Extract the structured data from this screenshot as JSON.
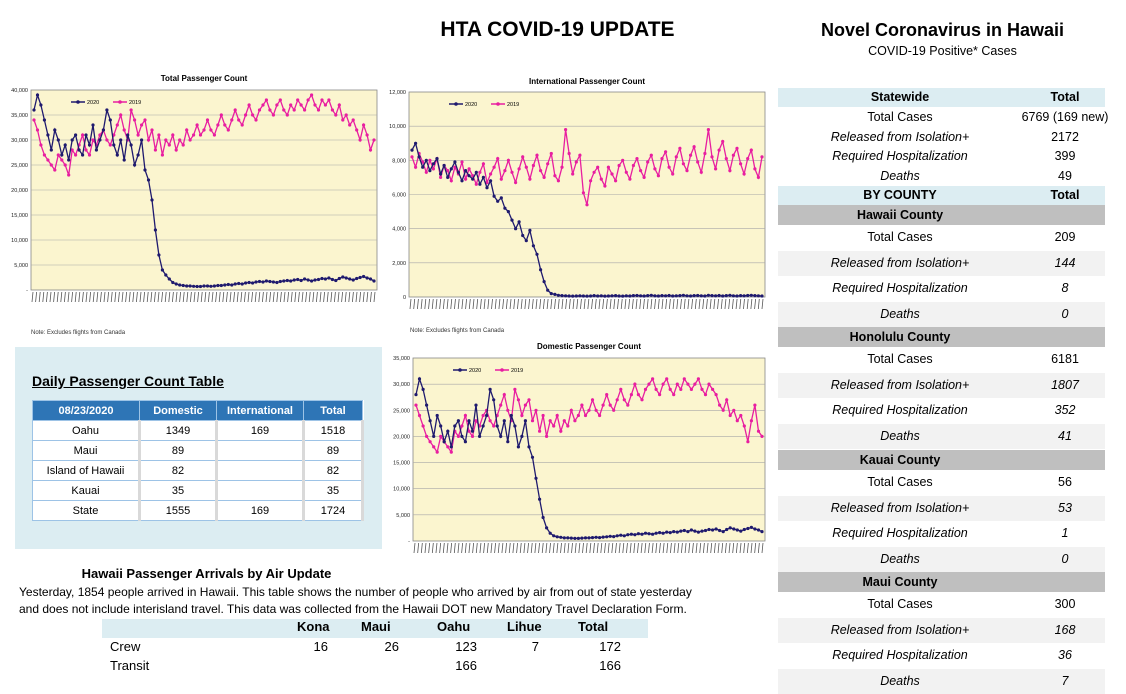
{
  "header": {
    "title": "HTA COVID-19 UPDATE",
    "novel_title": "Novel Coronavirus in Hawaii",
    "novel_subtitle": "COVID-19 Positive* Cases"
  },
  "colors": {
    "series2020": "#1f1a6e",
    "series2019": "#e81ea0",
    "plot_bg": "#fbf5cf",
    "table_header": "#2e75b6",
    "panel_bg": "#dcedf2",
    "county_bg": "#bfbfbf"
  },
  "chart_data": [
    {
      "id": "total",
      "type": "line",
      "title": "Total Passenger Count",
      "legend": [
        "2020",
        "2019"
      ],
      "legend_position": "top-left",
      "grid": true,
      "ylim": [
        0,
        40000
      ],
      "yticks": [
        "40,000",
        "35,000",
        "30,000",
        "25,000",
        "20,000",
        "15,000",
        "10,000",
        "5,000",
        "-"
      ],
      "note": "Note: Excludes flights from Canada",
      "series": [
        {
          "name": "2020",
          "values": [
            36000,
            39000,
            37000,
            34000,
            31000,
            28000,
            32000,
            30000,
            27000,
            29000,
            26000,
            30000,
            31000,
            28000,
            27000,
            31000,
            29000,
            33000,
            28000,
            30000,
            32000,
            36000,
            34000,
            29000,
            27000,
            30000,
            26000,
            31000,
            29000,
            25000,
            27000,
            30000,
            24000,
            22000,
            18000,
            12000,
            7000,
            4000,
            3000,
            2200,
            1500,
            1200,
            1000,
            900,
            800,
            800,
            750,
            700,
            700,
            800,
            800,
            750,
            800,
            900,
            900,
            1000,
            1100,
            1000,
            1200,
            1300,
            1200,
            1400,
            1500,
            1400,
            1600,
            1700,
            1600,
            1800,
            1700,
            1600,
            1500,
            1700,
            1800,
            1900,
            1800,
            2000,
            2100,
            1900,
            2200,
            2000,
            1800,
            2000,
            2100,
            2300,
            2200,
            2400,
            2100,
            1900,
            2300,
            2600,
            2400,
            2200,
            2000,
            2300,
            2500,
            2700,
            2400,
            2200,
            1800
          ]
        },
        {
          "name": "2019",
          "values": [
            34000,
            32000,
            29000,
            27000,
            26000,
            25000,
            24000,
            27000,
            26000,
            25000,
            23000,
            28000,
            27000,
            29000,
            31000,
            28000,
            27000,
            30000,
            29000,
            31000,
            32000,
            30000,
            29000,
            31000,
            33000,
            35000,
            32000,
            30000,
            36000,
            34000,
            31000,
            33000,
            34000,
            30000,
            32000,
            28000,
            31000,
            27000,
            30000,
            29000,
            31000,
            28000,
            30000,
            29000,
            32000,
            30000,
            31000,
            33000,
            31000,
            32000,
            34000,
            32000,
            31000,
            33000,
            35000,
            33000,
            32000,
            34000,
            36000,
            34000,
            33000,
            35000,
            37000,
            35000,
            34000,
            36000,
            37000,
            38000,
            36000,
            35000,
            37000,
            38000,
            36000,
            35000,
            37000,
            36000,
            38000,
            37000,
            36000,
            38000,
            39000,
            37000,
            36000,
            38000,
            37000,
            38000,
            36000,
            35000,
            37000,
            34000,
            35000,
            33000,
            34000,
            32000,
            30000,
            33000,
            31000,
            28000,
            30000
          ]
        }
      ]
    },
    {
      "id": "international",
      "type": "line",
      "title": "International Passenger Count",
      "legend": [
        "2020",
        "2019"
      ],
      "legend_position": "top-left",
      "grid": true,
      "ylim": [
        0,
        12000
      ],
      "yticks": [
        "12,000",
        "10,000",
        "8,000",
        "6,000",
        "4,000",
        "2,000",
        "0"
      ],
      "note": "Note: Excludes flights from Canada",
      "series": [
        {
          "name": "2020",
          "values": [
            8600,
            9000,
            8200,
            7600,
            8000,
            7400,
            7800,
            8100,
            7200,
            7700,
            7000,
            7500,
            7900,
            7300,
            6800,
            7400,
            7100,
            6900,
            7300,
            6600,
            7000,
            6400,
            6800,
            5900,
            5600,
            5800,
            5200,
            5000,
            4500,
            4000,
            4400,
            3600,
            3300,
            3900,
            3000,
            2500,
            1600,
            900,
            400,
            200,
            150,
            100,
            80,
            70,
            60,
            50,
            60,
            70,
            60,
            50,
            60,
            80,
            60,
            70,
            50,
            60,
            70,
            80,
            60,
            50,
            70,
            60,
            80,
            90,
            70,
            60,
            80,
            100,
            70,
            60,
            80,
            70,
            90,
            60,
            70,
            80,
            100,
            70,
            60,
            80,
            90,
            70,
            60,
            100,
            80,
            70,
            90,
            60,
            80,
            100,
            70,
            60,
            80,
            70,
            90,
            100,
            80,
            70,
            60
          ]
        },
        {
          "name": "2019",
          "values": [
            8200,
            7600,
            8400,
            7900,
            7300,
            8000,
            7500,
            8100,
            7000,
            7700,
            7400,
            6800,
            7600,
            7200,
            7900,
            6900,
            7500,
            7100,
            6600,
            7300,
            7800,
            6700,
            7200,
            7600,
            8100,
            6900,
            7400,
            8000,
            7300,
            6700,
            7500,
            8200,
            7600,
            6900,
            7700,
            8300,
            7400,
            7000,
            7800,
            8400,
            7100,
            6800,
            7600,
            9800,
            8400,
            7200,
            7900,
            8300,
            6100,
            5400,
            6800,
            7300,
            7600,
            6900,
            6500,
            7600,
            7200,
            6800,
            7700,
            8000,
            7300,
            6900,
            7700,
            8100,
            7400,
            7000,
            7900,
            8300,
            7500,
            7100,
            8100,
            8500,
            7600,
            7200,
            8200,
            8700,
            7800,
            7400,
            8300,
            8800,
            7900,
            7300,
            8400,
            9800,
            8200,
            7500,
            8600,
            9100,
            8100,
            7400,
            8300,
            8700,
            7800,
            7200,
            8100,
            8600,
            7500,
            7000,
            8200
          ]
        }
      ]
    },
    {
      "id": "domestic",
      "type": "line",
      "title": "Domestic Passenger Count",
      "legend": [
        "2020",
        "2019"
      ],
      "legend_position": "top-left",
      "grid": true,
      "ylim": [
        0,
        35000
      ],
      "yticks": [
        "35,000",
        "30,000",
        "25,000",
        "20,000",
        "15,000",
        "10,000",
        "5,000",
        "-"
      ],
      "series": [
        {
          "name": "2020",
          "values": [
            28000,
            31000,
            29000,
            26000,
            23000,
            20000,
            24000,
            22000,
            19000,
            21000,
            18000,
            22000,
            23000,
            20000,
            19000,
            23000,
            21000,
            26000,
            20000,
            22000,
            24000,
            29000,
            27000,
            22000,
            20000,
            23000,
            19000,
            24000,
            22000,
            18000,
            20000,
            23000,
            18000,
            16000,
            12000,
            8000,
            4500,
            2500,
            1500,
            1000,
            800,
            700,
            600,
            600,
            550,
            500,
            500,
            550,
            600,
            600,
            650,
            700,
            650,
            750,
            800,
            900,
            850,
            1000,
            1100,
            1000,
            1200,
            1300,
            1200,
            1400,
            1300,
            1500,
            1400,
            1300,
            1500,
            1600,
            1500,
            1700,
            1600,
            1800,
            1700,
            1900,
            2000,
            1800,
            2100,
            1900,
            1700,
            1900,
            2000,
            2200,
            2100,
            2300,
            2000,
            1800,
            2200,
            2500,
            2300,
            2100,
            1900,
            2200,
            2400,
            2600,
            2300,
            2100,
            1800
          ]
        },
        {
          "name": "2019",
          "values": [
            26000,
            24000,
            22000,
            20000,
            19000,
            18000,
            17000,
            20000,
            19000,
            18000,
            17000,
            21000,
            20000,
            22000,
            24000,
            21000,
            20000,
            23000,
            22000,
            24000,
            25000,
            23000,
            22000,
            24000,
            26000,
            28000,
            25000,
            23000,
            29000,
            27000,
            24000,
            26000,
            27000,
            23000,
            25000,
            21000,
            24000,
            20000,
            23000,
            22000,
            24000,
            21000,
            23000,
            22000,
            25000,
            23000,
            24000,
            26000,
            24000,
            25000,
            27000,
            25000,
            24000,
            26000,
            28000,
            26000,
            25000,
            27000,
            29000,
            27000,
            26000,
            28000,
            30000,
            28000,
            27000,
            29000,
            30000,
            31000,
            29000,
            28000,
            30000,
            31000,
            29000,
            28000,
            30000,
            29000,
            31000,
            30000,
            29000,
            30000,
            31000,
            29000,
            28000,
            30000,
            29000,
            28000,
            26000,
            25000,
            27000,
            24000,
            25000,
            23000,
            24000,
            22000,
            19000,
            23000,
            26000,
            21000,
            20000
          ]
        }
      ]
    }
  ],
  "daily_table": {
    "title": "Daily Passenger Count Table",
    "headers": [
      "08/23/2020",
      "Domestic",
      "International",
      "Total"
    ],
    "rows": [
      [
        "Oahu",
        "1349",
        "169",
        "1518"
      ],
      [
        "Maui",
        "89",
        "",
        "89"
      ],
      [
        "Island of Hawaii",
        "82",
        "",
        "82"
      ],
      [
        "Kauai",
        "35",
        "",
        "35"
      ],
      [
        "State",
        "1555",
        "169",
        "1724"
      ]
    ]
  },
  "arrivals": {
    "title": "Hawaii Passenger Arrivals by Air Update",
    "desc1": "Yesterday, 1854 people arrived in Hawaii. This table shows the number of people who arrived by air from out of state yesterday",
    "desc2": "and does not include interisland travel. This data was collected from the Hawaii DOT new Mandatory Travel Declaration Form.",
    "headers": [
      "Kona",
      "Maui",
      "Oahu",
      "Lihue",
      "Total"
    ],
    "rows": [
      {
        "label": "Crew",
        "values": [
          "16",
          "26",
          "123",
          "7",
          "172"
        ]
      },
      {
        "label": "Transit",
        "values": [
          "",
          "",
          "166",
          "",
          "166"
        ]
      }
    ]
  },
  "statewide": {
    "header_label": "Statewide",
    "header_value": "Total",
    "rows": [
      {
        "label": "Total Cases",
        "value": "6769 (169 new)"
      },
      {
        "label": "Released from Isolation+",
        "value": "2172"
      },
      {
        "label": "Required Hospitalization",
        "value": "399"
      },
      {
        "label": "Deaths",
        "value": "49"
      }
    ],
    "by_county_label": "BY COUNTY",
    "by_county_value": "Total",
    "counties": [
      {
        "name": "Hawaii County",
        "rows": [
          {
            "label": "Total Cases",
            "value": "209"
          },
          {
            "label": "Released from Isolation+",
            "value": "144"
          },
          {
            "label": "Required Hospitalization",
            "value": "8"
          },
          {
            "label": "Deaths",
            "value": "0"
          }
        ]
      },
      {
        "name": "Honolulu County",
        "rows": [
          {
            "label": "Total Cases",
            "value": "6181"
          },
          {
            "label": "Released from Isolation+",
            "value": "1807"
          },
          {
            "label": "Required Hospitalization",
            "value": "352"
          },
          {
            "label": "Deaths",
            "value": "41"
          }
        ]
      },
      {
        "name": "Kauai County",
        "rows": [
          {
            "label": "Total Cases",
            "value": "56"
          },
          {
            "label": "Released from Isolation+",
            "value": "53"
          },
          {
            "label": "Required Hospitalization",
            "value": "1"
          },
          {
            "label": "Deaths",
            "value": "0"
          }
        ]
      },
      {
        "name": "Maui County",
        "rows": [
          {
            "label": "Total Cases",
            "value": "300"
          },
          {
            "label": "Released from Isolation+",
            "value": "168"
          },
          {
            "label": "Required Hospitalization",
            "value": "36"
          },
          {
            "label": "Deaths",
            "value": "7"
          }
        ]
      }
    ]
  }
}
